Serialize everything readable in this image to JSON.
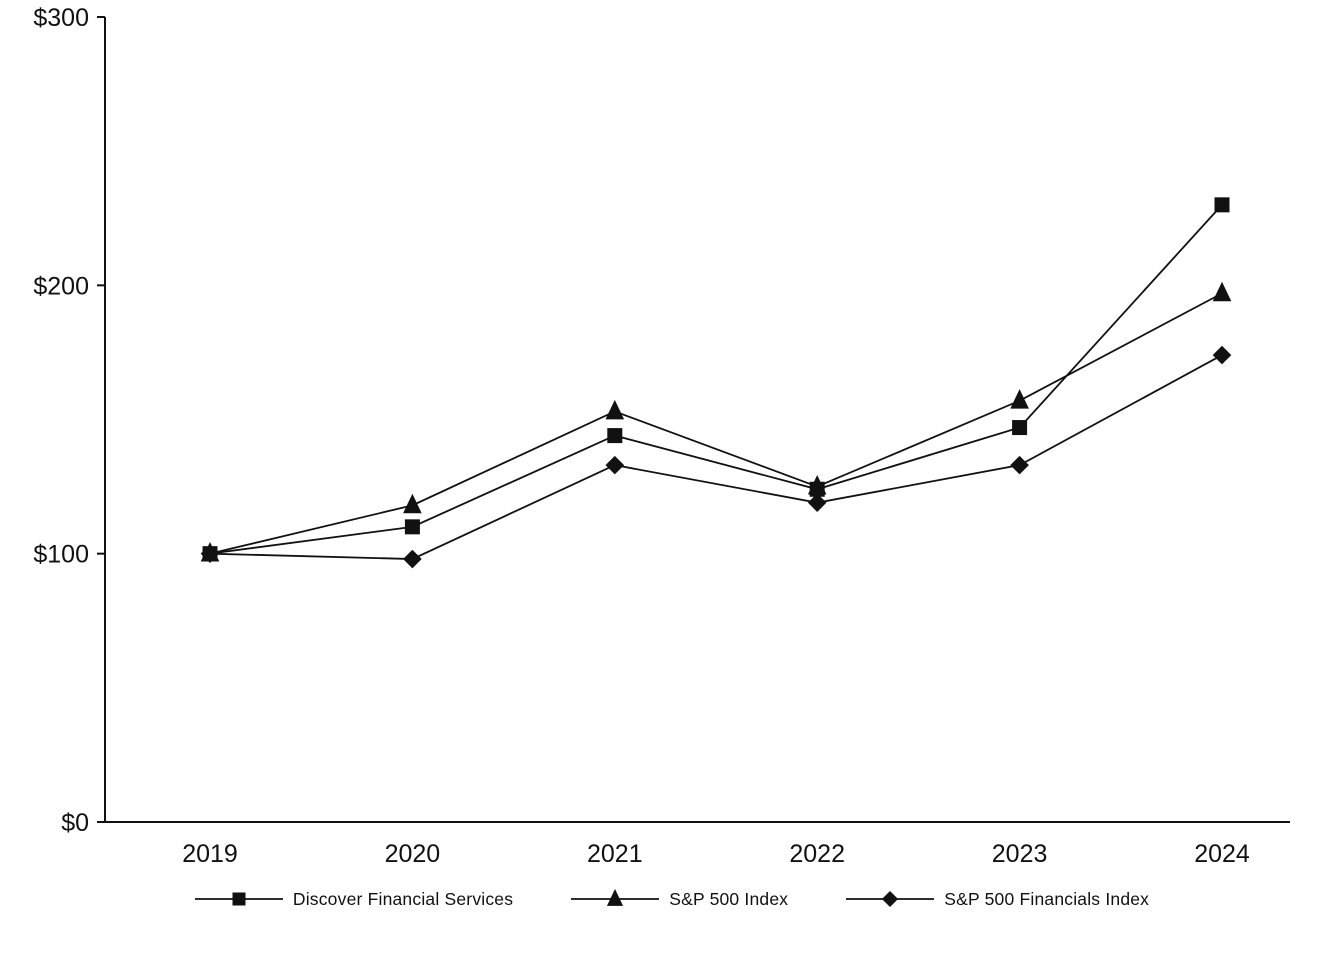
{
  "chart_data": {
    "type": "line",
    "title": "",
    "xlabel": "",
    "ylabel": "",
    "x_labels": [
      "2019",
      "2020",
      "2021",
      "2022",
      "2023",
      "2024"
    ],
    "series": [
      {
        "name": "Discover Financial Services",
        "marker": "square",
        "values": [
          100,
          110,
          144,
          124,
          147,
          230
        ]
      },
      {
        "name": "S&P 500 Index",
        "marker": "triangle",
        "values": [
          100,
          118,
          153,
          125,
          157,
          197
        ]
      },
      {
        "name": "S&P 500 Financials Index",
        "marker": "diamond",
        "values": [
          100,
          98,
          133,
          119,
          133,
          174
        ]
      }
    ],
    "y_ticks": [
      0,
      100,
      200,
      300
    ],
    "y_tick_labels": [
      "$0",
      "$100",
      "$200",
      "$300"
    ],
    "ylim": [
      0,
      300
    ],
    "grid": false,
    "legend_position": "bottom",
    "line_color": "#111111",
    "background_color": "#ffffff"
  }
}
